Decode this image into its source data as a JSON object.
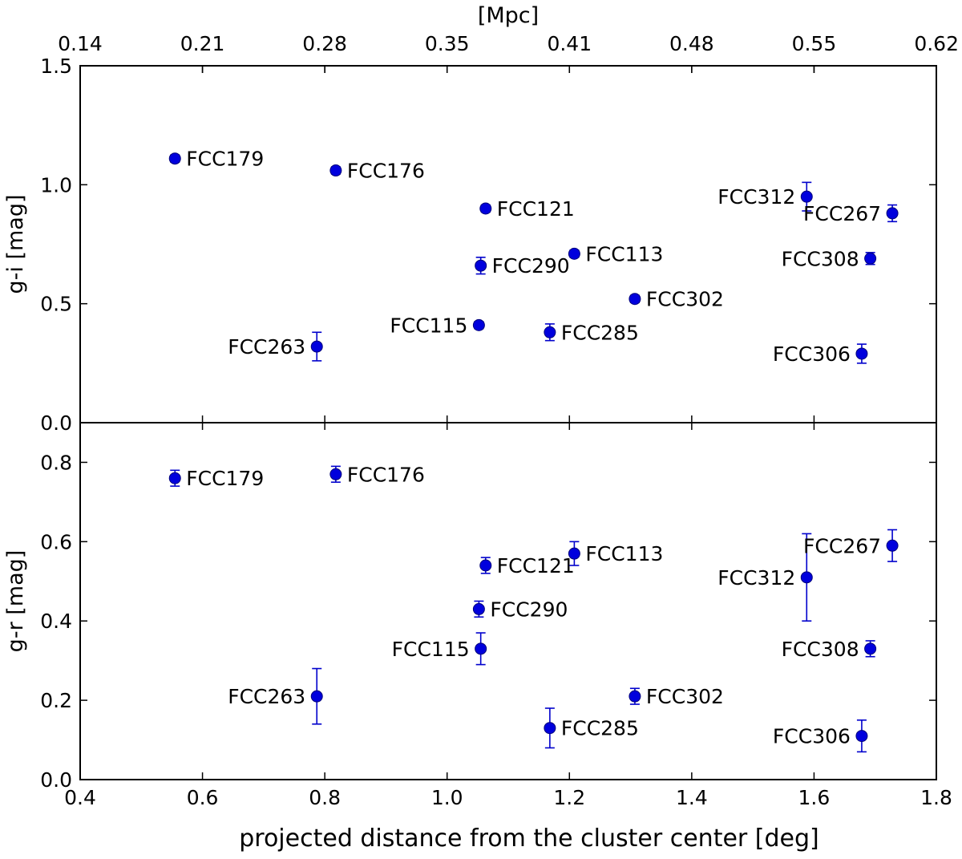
{
  "chart_data": {
    "type": "scatter",
    "top_xlabel": "[Mpc]",
    "top_xticks": [
      "0.14",
      "0.21",
      "0.28",
      "0.35",
      "0.41",
      "0.48",
      "0.55",
      "0.62"
    ],
    "xlabel": "projected distance from the cluster center [deg]",
    "xlim": [
      0.4,
      1.8
    ],
    "xticks": [
      "0.4",
      "0.6",
      "0.8",
      "1.0",
      "1.2",
      "1.4",
      "1.6",
      "1.8"
    ],
    "color": "#0000dd",
    "panels": [
      {
        "name": "g-i",
        "ylabel": "g-i [mag]",
        "ylim": [
          0.0,
          1.5
        ],
        "yticks": [
          "0.0",
          "0.5",
          "1.0",
          "1.5"
        ],
        "points": [
          {
            "label": "FCC179",
            "x": 0.555,
            "y": 1.11,
            "err": 0.015,
            "label_side": "right"
          },
          {
            "label": "FCC176",
            "x": 0.818,
            "y": 1.06,
            "err": 0.015,
            "label_side": "right"
          },
          {
            "label": "FCC121",
            "x": 1.063,
            "y": 0.9,
            "err": 0.015,
            "label_side": "right"
          },
          {
            "label": "FCC290",
            "x": 1.055,
            "y": 0.66,
            "err": 0.035,
            "label_side": "right"
          },
          {
            "label": "FCC113",
            "x": 1.208,
            "y": 0.71,
            "err": 0.015,
            "label_side": "right"
          },
          {
            "label": "FCC302",
            "x": 1.307,
            "y": 0.52,
            "err": 0.015,
            "label_side": "right"
          },
          {
            "label": "FCC115",
            "x": 1.052,
            "y": 0.41,
            "err": 0.015,
            "label_side": "left"
          },
          {
            "label": "FCC285",
            "x": 1.168,
            "y": 0.38,
            "err": 0.035,
            "label_side": "right"
          },
          {
            "label": "FCC263",
            "x": 0.787,
            "y": 0.32,
            "err": 0.06,
            "label_side": "left"
          },
          {
            "label": "FCC312",
            "x": 1.588,
            "y": 0.95,
            "err": 0.06,
            "label_side": "left"
          },
          {
            "label": "FCC267",
            "x": 1.728,
            "y": 0.88,
            "err": 0.035,
            "label_side": "left"
          },
          {
            "label": "FCC308",
            "x": 1.692,
            "y": 0.69,
            "err": 0.025,
            "label_side": "left"
          },
          {
            "label": "FCC306",
            "x": 1.678,
            "y": 0.29,
            "err": 0.04,
            "label_side": "left"
          }
        ]
      },
      {
        "name": "g-r",
        "ylabel": "g-r [mag]",
        "ylim": [
          0.0,
          0.9
        ],
        "yticks": [
          "0.0",
          "0.2",
          "0.4",
          "0.6",
          "0.8"
        ],
        "points": [
          {
            "label": "FCC179",
            "x": 0.555,
            "y": 0.76,
            "err": 0.02,
            "label_side": "right"
          },
          {
            "label": "FCC176",
            "x": 0.818,
            "y": 0.77,
            "err": 0.02,
            "label_side": "right"
          },
          {
            "label": "FCC121",
            "x": 1.063,
            "y": 0.54,
            "err": 0.02,
            "label_side": "right"
          },
          {
            "label": "FCC113",
            "x": 1.208,
            "y": 0.57,
            "err": 0.03,
            "label_side": "right"
          },
          {
            "label": "FCC290",
            "x": 1.052,
            "y": 0.43,
            "err": 0.02,
            "label_side": "right"
          },
          {
            "label": "FCC115",
            "x": 1.055,
            "y": 0.33,
            "err": 0.04,
            "label_side": "left"
          },
          {
            "label": "FCC263",
            "x": 0.787,
            "y": 0.21,
            "err": 0.07,
            "label_side": "left"
          },
          {
            "label": "FCC302",
            "x": 1.307,
            "y": 0.21,
            "err": 0.02,
            "label_side": "right"
          },
          {
            "label": "FCC285",
            "x": 1.168,
            "y": 0.13,
            "err": 0.05,
            "label_side": "right"
          },
          {
            "label": "FCC312",
            "x": 1.588,
            "y": 0.51,
            "err": 0.11,
            "label_side": "left"
          },
          {
            "label": "FCC267",
            "x": 1.728,
            "y": 0.59,
            "err": 0.04,
            "label_side": "left"
          },
          {
            "label": "FCC308",
            "x": 1.692,
            "y": 0.33,
            "err": 0.02,
            "label_side": "left"
          },
          {
            "label": "FCC306",
            "x": 1.678,
            "y": 0.11,
            "err": 0.04,
            "label_side": "left"
          }
        ]
      }
    ]
  }
}
